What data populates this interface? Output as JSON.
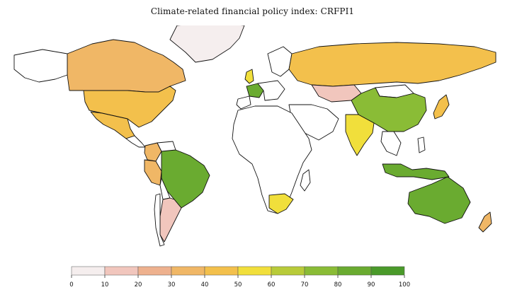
{
  "title": "Climate-related financial policy index: CRFPI1",
  "legend": {
    "ticks": [
      "0",
      "10",
      "20",
      "30",
      "40",
      "50",
      "60",
      "70",
      "80",
      "90",
      "100"
    ],
    "bin_colors": [
      "#f5eeee",
      "#f1c6bd",
      "#eeb18e",
      "#f0b766",
      "#f3c04c",
      "#f1df3b",
      "#b8cb39",
      "#8abc36",
      "#6aab30",
      "#4a9a2a"
    ]
  },
  "regions": [
    {
      "name": "Canada",
      "value": 35
    },
    {
      "name": "United States",
      "value": 45
    },
    {
      "name": "Mexico",
      "value": 45
    },
    {
      "name": "Greenland",
      "value": 0
    },
    {
      "name": "Brazil",
      "value": 80
    },
    {
      "name": "Argentina",
      "value": 15
    },
    {
      "name": "Peru",
      "value": 35
    },
    {
      "name": "Colombia",
      "value": 35
    },
    {
      "name": "Russia",
      "value": 45
    },
    {
      "name": "China",
      "value": 70
    },
    {
      "name": "Kazakhstan",
      "value": 15
    },
    {
      "name": "India",
      "value": 55
    },
    {
      "name": "Indonesia",
      "value": 80
    },
    {
      "name": "Australia",
      "value": 80
    },
    {
      "name": "South Africa",
      "value": 55
    },
    {
      "name": "France",
      "value": 80
    },
    {
      "name": "United Kingdom",
      "value": 55
    },
    {
      "name": "Japan",
      "value": 45
    },
    {
      "name": "New Zealand",
      "value": 35
    }
  ]
}
